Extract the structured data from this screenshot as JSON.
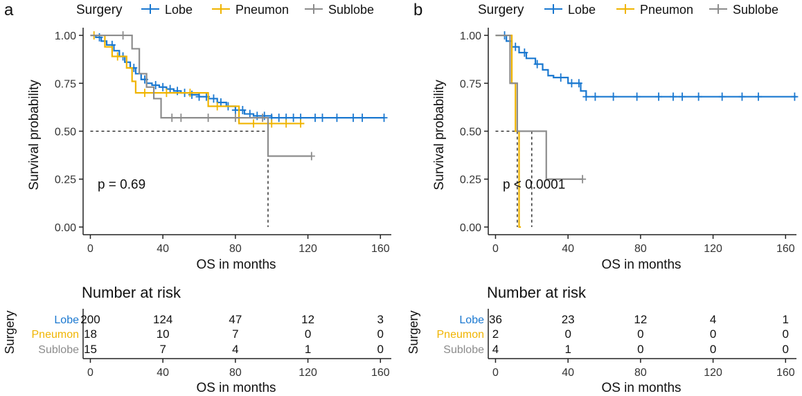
{
  "colors": {
    "lobe": "#1a78d0",
    "pneumon": "#f0b400",
    "sublobe": "#8c8c8c",
    "axis": "#222222",
    "text": "#111111",
    "tick": "#333333"
  },
  "chart_data": [
    {
      "type": "line",
      "panel_label": "a",
      "legend": {
        "title": "Surgery",
        "entries": [
          "Lobe",
          "Pneumon",
          "Sublobe"
        ],
        "placement": "top"
      },
      "xlabel": "OS in months",
      "ylabel": "Survival probability",
      "xlim": [
        -4,
        166
      ],
      "ylim": [
        -0.04,
        1.04
      ],
      "xticks": [
        0,
        40,
        80,
        120,
        160
      ],
      "xtick_labels": [
        "0",
        "40",
        "80",
        "120",
        "160"
      ],
      "yticks": [
        0,
        0.25,
        0.5,
        0.75,
        1
      ],
      "ytick_labels": [
        "0.00",
        "0.25",
        "0.50",
        "0.75",
        "1.00"
      ],
      "annotation": {
        "text": "p = 0.69",
        "x": 4,
        "y": 0.2
      },
      "median_lines": {
        "y": 0.5,
        "x": [
          98
        ]
      },
      "series": [
        {
          "name": "Lobe",
          "key": "lobe",
          "x": [
            0,
            3,
            6,
            9,
            13,
            16,
            19,
            22,
            25,
            28,
            31,
            34,
            38,
            42,
            46,
            50,
            55,
            60,
            65,
            70,
            75,
            80,
            85,
            90,
            95,
            100,
            105,
            110,
            115,
            120,
            130,
            140,
            150,
            162
          ],
          "y": [
            1.0,
            0.99,
            0.97,
            0.95,
            0.92,
            0.89,
            0.86,
            0.83,
            0.8,
            0.77,
            0.75,
            0.74,
            0.73,
            0.72,
            0.71,
            0.7,
            0.69,
            0.68,
            0.67,
            0.65,
            0.63,
            0.61,
            0.59,
            0.58,
            0.58,
            0.57,
            0.57,
            0.57,
            0.57,
            0.57,
            0.57,
            0.57,
            0.57,
            0.57
          ],
          "censor_x": [
            5,
            12,
            18,
            24,
            30,
            36,
            40,
            44,
            48,
            52,
            56,
            60,
            64,
            68,
            72,
            76,
            80,
            84,
            88,
            92,
            96,
            100,
            104,
            108,
            112,
            116,
            124,
            128,
            136,
            145,
            150,
            162
          ]
        },
        {
          "name": "Pneumon",
          "key": "pneumon",
          "x": [
            0,
            8,
            12,
            20,
            23,
            25,
            60,
            65,
            80,
            82,
            118
          ],
          "y": [
            1.0,
            0.94,
            0.89,
            0.83,
            0.76,
            0.7,
            0.7,
            0.63,
            0.63,
            0.54,
            0.54
          ],
          "censor_x": [
            2,
            15,
            30,
            42,
            55,
            70,
            90,
            100,
            108,
            116
          ]
        },
        {
          "name": "Sublobe",
          "key": "sublobe",
          "x": [
            0,
            23,
            27,
            31,
            35,
            39,
            98,
            122
          ],
          "y": [
            1.0,
            0.93,
            0.8,
            0.73,
            0.67,
            0.57,
            0.37,
            0.37
          ],
          "censor_x": [
            18,
            45,
            50,
            65,
            80,
            95,
            122
          ]
        }
      ],
      "risk_table": {
        "title": "Number at risk",
        "ylabel": "Surgery",
        "xlabel": "OS in months",
        "time_points": [
          0,
          40,
          80,
          120,
          160
        ],
        "tick_labels": [
          "0",
          "40",
          "80",
          "120",
          "160"
        ],
        "rows": [
          {
            "label": "Lobe",
            "key": "lobe",
            "counts": [
              "200",
              "124",
              "47",
              "12",
              "3"
            ]
          },
          {
            "label": "Pneumon",
            "key": "pneumon",
            "counts": [
              "18",
              "10",
              "7",
              "0",
              "0"
            ]
          },
          {
            "label": "Sublobe",
            "key": "sublobe",
            "counts": [
              "15",
              "7",
              "4",
              "1",
              "0"
            ]
          }
        ]
      }
    },
    {
      "type": "line",
      "panel_label": "b",
      "legend": {
        "title": "Surgery",
        "entries": [
          "Lobe",
          "Pneumon",
          "Sublobe"
        ],
        "placement": "top"
      },
      "xlabel": "OS in months",
      "ylabel": "Survival probability",
      "xlim": [
        -4,
        166
      ],
      "ylim": [
        -0.04,
        1.04
      ],
      "xticks": [
        0,
        40,
        80,
        120,
        160
      ],
      "xtick_labels": [
        "0",
        "40",
        "80",
        "120",
        "160"
      ],
      "yticks": [
        0,
        0.25,
        0.5,
        0.75,
        1
      ],
      "ytick_labels": [
        "0.00",
        "0.25",
        "0.50",
        "0.75",
        "1.00"
      ],
      "annotation": {
        "text": "p < 0.0001",
        "x": 4,
        "y": 0.2
      },
      "median_lines": {
        "y": 0.5,
        "x": [
          12,
          13,
          20
        ]
      },
      "series": [
        {
          "name": "Lobe",
          "key": "lobe",
          "x": [
            0,
            6,
            9,
            13,
            17,
            22,
            26,
            29,
            32,
            40,
            47,
            50,
            166
          ],
          "y": [
            1.0,
            0.97,
            0.94,
            0.91,
            0.88,
            0.85,
            0.82,
            0.79,
            0.78,
            0.75,
            0.71,
            0.68,
            0.68
          ],
          "censor_x": [
            5,
            11,
            16,
            23,
            36,
            42,
            46,
            50,
            55,
            65,
            78,
            90,
            98,
            103,
            112,
            125,
            136,
            145,
            165
          ]
        },
        {
          "name": "Pneumon",
          "key": "pneumon",
          "x": [
            0,
            9,
            11,
            13,
            14
          ],
          "y": [
            1.0,
            0.75,
            0.5,
            0.0,
            0.0
          ],
          "censor_x": []
        },
        {
          "name": "Sublobe",
          "key": "sublobe",
          "x": [
            0,
            8,
            12,
            28,
            48
          ],
          "y": [
            1.0,
            0.75,
            0.5,
            0.25,
            0.25
          ],
          "censor_x": [
            48
          ]
        }
      ],
      "risk_table": {
        "title": "Number at risk",
        "ylabel": "Surgery",
        "xlabel": "OS in months",
        "time_points": [
          0,
          40,
          80,
          120,
          160
        ],
        "tick_labels": [
          "0",
          "40",
          "80",
          "120",
          "160"
        ],
        "rows": [
          {
            "label": "Lobe",
            "key": "lobe",
            "counts": [
              "36",
              "23",
              "12",
              "4",
              "1"
            ]
          },
          {
            "label": "Pneumon",
            "key": "pneumon",
            "counts": [
              "2",
              "0",
              "0",
              "0",
              "0"
            ]
          },
          {
            "label": "Sublobe",
            "key": "sublobe",
            "counts": [
              "4",
              "1",
              "0",
              "0",
              "0"
            ]
          }
        ]
      }
    }
  ]
}
